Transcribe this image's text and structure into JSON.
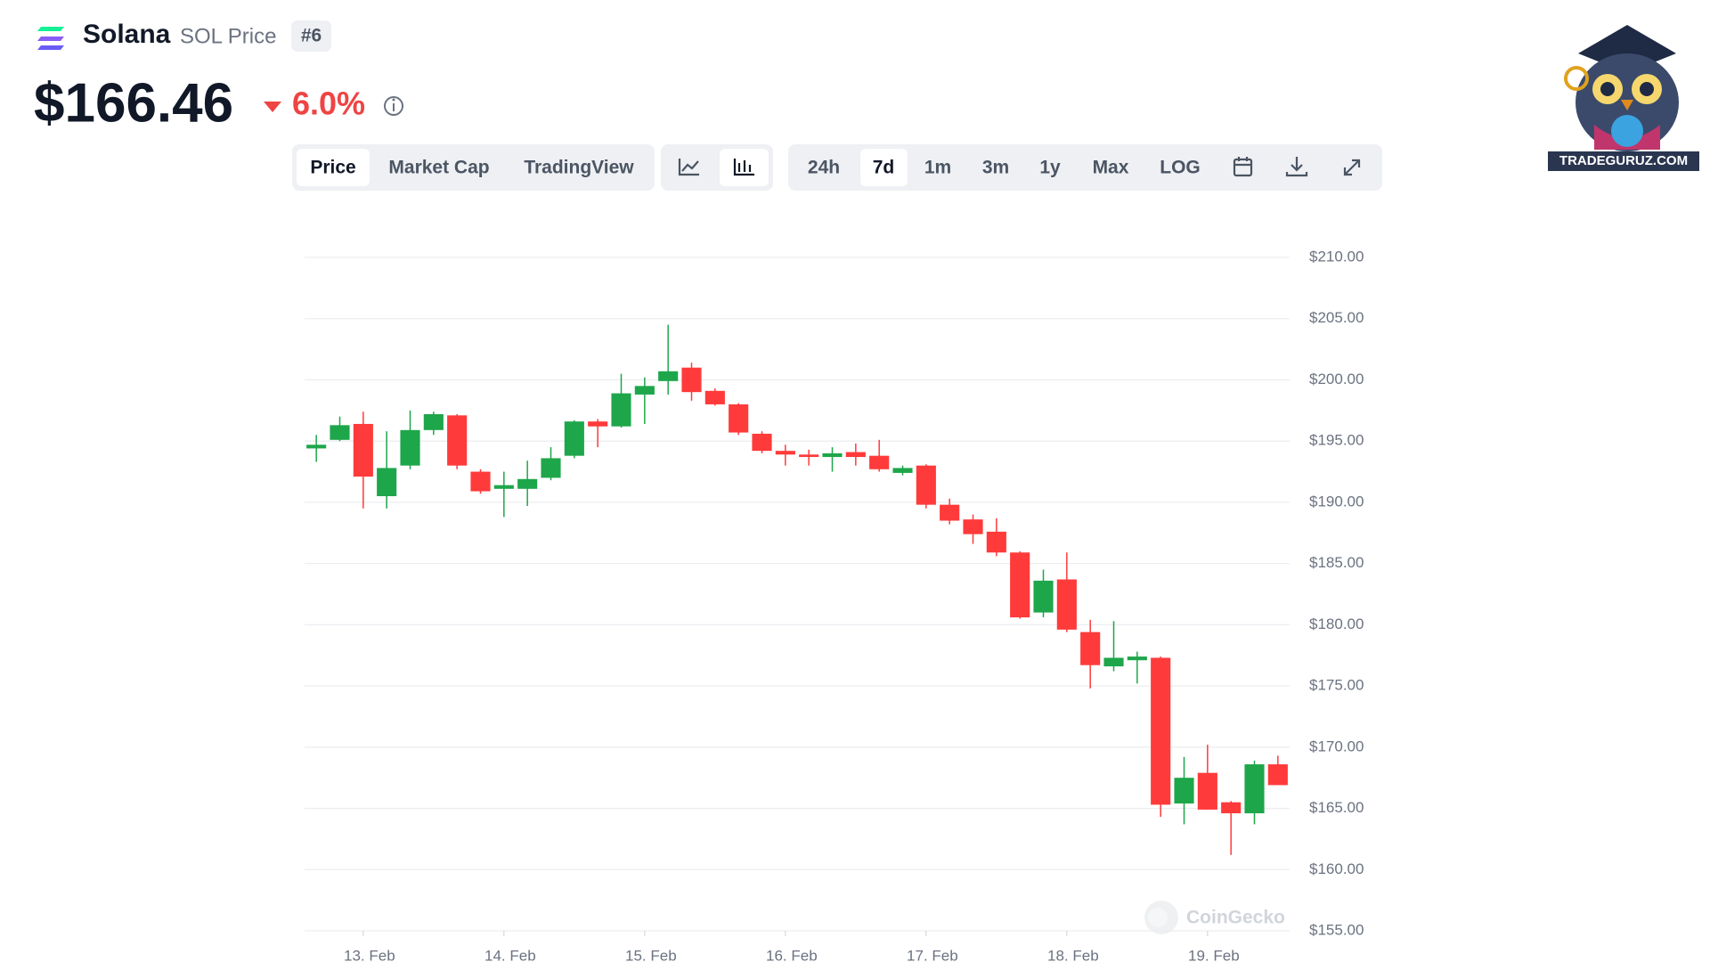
{
  "header": {
    "coin": "Solana",
    "subtitle": "SOL Price",
    "rank": "#6",
    "price": "$166.46",
    "change": "6.0%"
  },
  "toolbar": {
    "views": [
      "Price",
      "Market Cap",
      "TradingView"
    ],
    "ranges": [
      "24h",
      "7d",
      "1m",
      "3m",
      "1y",
      "Max",
      "LOG"
    ]
  },
  "watermark": "CoinGecko",
  "brand": "TRADEGURUZ.COM",
  "chart_data": {
    "type": "candlestick",
    "up_color": "#1ea64a",
    "down_color": "#ff3a3a",
    "grid": true,
    "categories": [
      null,
      null,
      "13. Feb",
      null,
      null,
      null,
      null,
      null,
      "14. Feb",
      null,
      null,
      null,
      null,
      null,
      "15. Feb",
      null,
      null,
      null,
      null,
      null,
      "16. Feb",
      null,
      null,
      null,
      null,
      null,
      "17. Feb",
      null,
      null,
      null,
      null,
      null,
      "18. Feb",
      null,
      null,
      null,
      null,
      null,
      "19. Feb",
      null,
      null,
      null
    ],
    "open": [
      194.4,
      195.1,
      196.4,
      190.5,
      193.0,
      195.9,
      197.1,
      192.5,
      191.1,
      191.1,
      192.0,
      193.8,
      196.6,
      196.2,
      198.8,
      199.9,
      201.0,
      199.1,
      198.0,
      195.6,
      194.2,
      193.9,
      193.7,
      194.1,
      193.8,
      192.4,
      193.0,
      189.8,
      188.6,
      187.6,
      185.9,
      181.0,
      183.7,
      179.4,
      176.6,
      177.1,
      177.3,
      165.4,
      167.9,
      165.5,
      164.6,
      168.6
    ],
    "high": [
      195.5,
      197.0,
      197.4,
      195.8,
      197.5,
      197.4,
      197.2,
      192.7,
      192.5,
      193.4,
      194.5,
      196.7,
      196.8,
      200.5,
      200.2,
      204.5,
      201.4,
      199.3,
      198.1,
      195.8,
      194.7,
      194.3,
      194.5,
      194.8,
      195.1,
      193.0,
      193.1,
      190.3,
      189.0,
      188.7,
      186.0,
      184.5,
      185.9,
      180.4,
      180.3,
      177.8,
      177.4,
      169.2,
      170.2,
      165.6,
      168.9,
      169.3
    ],
    "low": [
      193.3,
      195.0,
      189.5,
      189.5,
      192.7,
      195.5,
      192.7,
      190.7,
      188.8,
      189.7,
      191.8,
      193.6,
      194.5,
      196.1,
      196.4,
      198.8,
      198.3,
      197.9,
      195.5,
      194.0,
      193.0,
      193.0,
      192.5,
      193.0,
      192.5,
      192.2,
      189.5,
      188.2,
      186.6,
      185.6,
      180.5,
      180.6,
      179.4,
      174.8,
      176.2,
      175.2,
      164.3,
      163.7,
      164.9,
      161.2,
      163.7,
      166.9
    ],
    "close": [
      194.7,
      196.3,
      192.1,
      192.8,
      195.9,
      197.2,
      193.0,
      190.9,
      191.4,
      191.9,
      193.6,
      196.6,
      196.2,
      198.9,
      199.5,
      200.7,
      199.0,
      198.0,
      195.7,
      194.2,
      193.9,
      193.7,
      194.0,
      193.7,
      192.7,
      192.8,
      189.8,
      188.5,
      187.4,
      185.9,
      180.6,
      183.6,
      179.6,
      176.7,
      177.3,
      177.4,
      165.3,
      167.5,
      164.9,
      164.6,
      168.6,
      166.9
    ],
    "ylim": [
      155,
      210
    ],
    "yticks": [
      {
        "value": 155,
        "label": "$155.00"
      },
      {
        "value": 160,
        "label": "$160.00"
      },
      {
        "value": 165,
        "label": "$165.00"
      },
      {
        "value": 170,
        "label": "$170.00"
      },
      {
        "value": 175,
        "label": "$175.00"
      },
      {
        "value": 180,
        "label": "$180.00"
      },
      {
        "value": 185,
        "label": "$185.00"
      },
      {
        "value": 190,
        "label": "$190.00"
      },
      {
        "value": 195,
        "label": "$195.00"
      },
      {
        "value": 200,
        "label": "$200.00"
      },
      {
        "value": 205,
        "label": "$205.00"
      },
      {
        "value": 210,
        "label": "$210.00"
      }
    ]
  }
}
